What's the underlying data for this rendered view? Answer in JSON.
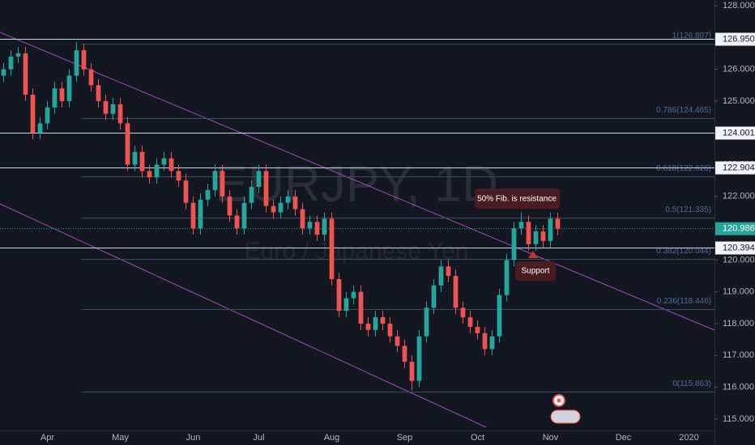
{
  "chart_data": {
    "type": "candlestick",
    "watermark": {
      "title": "EURJPY, 1D",
      "subtitle": "Euro / Japanese Yen"
    },
    "annotations": [
      "50% Fib. is resistance",
      "Support"
    ],
    "categories": [
      null,
      null,
      null,
      null,
      null,
      null,
      "Apr",
      null,
      null,
      null,
      null,
      null,
      null,
      null,
      null,
      null,
      "May",
      null,
      null,
      null,
      null,
      null,
      null,
      null,
      null,
      null,
      "Jun",
      null,
      null,
      null,
      null,
      null,
      null,
      null,
      null,
      "Jul",
      null,
      null,
      null,
      null,
      null,
      null,
      null,
      null,
      null,
      "Aug",
      null,
      null,
      null,
      null,
      null,
      null,
      null,
      null,
      null,
      "Sep",
      null,
      null,
      null,
      null,
      null,
      null,
      null,
      null,
      null,
      "Oct",
      null,
      null,
      null,
      null,
      null,
      null,
      null,
      null,
      null,
      "Nov",
      null,
      null,
      null,
      null,
      null,
      null,
      null,
      null,
      null,
      "Dec",
      null,
      null,
      null,
      null,
      null,
      null,
      null,
      null,
      "2020",
      null,
      null,
      null
    ],
    "open": [
      125.8,
      126.0,
      126.4,
      126.5,
      125.2,
      124.0,
      124.3,
      124.8,
      125.4,
      125.0,
      125.8,
      126.6,
      126.0,
      125.5,
      125.0,
      124.6,
      124.9,
      124.3,
      123.0,
      123.4,
      122.8,
      122.6,
      123.0,
      123.2,
      122.8,
      122.5,
      121.8,
      121.0,
      121.9,
      122.2,
      122.8,
      122.0,
      121.4,
      121.0,
      121.8,
      122.3,
      122.8,
      121.7,
      121.5,
      121.8,
      122.0,
      121.6,
      121.0,
      121.2,
      120.8,
      121.3,
      119.4,
      118.4,
      118.8,
      119.0,
      118.0,
      117.8,
      118.2,
      118.0,
      117.6,
      117.3,
      116.8,
      116.2,
      117.6,
      118.5,
      119.2,
      119.8,
      119.5,
      118.5,
      118.2,
      117.9,
      117.7,
      117.2,
      117.6,
      118.9,
      120.0,
      121.0,
      121.2,
      120.5,
      120.9,
      120.6,
      121.3,
      null,
      null,
      null,
      null,
      null,
      null,
      null,
      null,
      null,
      null,
      null,
      null,
      null,
      null,
      null,
      null,
      null,
      null,
      null,
      null,
      null
    ],
    "high": [
      126.2,
      126.6,
      126.7,
      126.7,
      125.4,
      124.5,
      125.0,
      125.6,
      125.6,
      126.0,
      126.85,
      126.8,
      126.2,
      125.7,
      125.2,
      125.1,
      125.1,
      124.5,
      123.6,
      123.6,
      123.0,
      123.2,
      123.4,
      123.4,
      123.0,
      122.7,
      122.0,
      122.1,
      122.4,
      123.0,
      123.0,
      122.2,
      121.6,
      122.0,
      122.5,
      123.0,
      123.0,
      121.9,
      122.0,
      122.2,
      122.2,
      121.8,
      121.4,
      121.4,
      121.5,
      121.5,
      119.6,
      119.0,
      119.2,
      119.2,
      118.2,
      118.4,
      118.4,
      118.2,
      117.8,
      117.5,
      117.0,
      117.8,
      118.7,
      119.4,
      120.0,
      120.0,
      119.7,
      118.7,
      118.4,
      118.1,
      117.9,
      117.8,
      119.1,
      120.2,
      121.2,
      121.5,
      121.4,
      121.1,
      121.1,
      121.5,
      121.5,
      null,
      null,
      null,
      null,
      null,
      null,
      null,
      null,
      null,
      null,
      null,
      null,
      null,
      null,
      null,
      null,
      null,
      null,
      null,
      null,
      null
    ],
    "low": [
      125.6,
      125.8,
      126.2,
      125.0,
      123.8,
      123.8,
      124.1,
      124.6,
      124.8,
      124.8,
      125.6,
      125.8,
      125.3,
      124.8,
      124.4,
      124.4,
      124.1,
      122.8,
      122.8,
      122.6,
      122.4,
      122.4,
      122.8,
      122.6,
      122.3,
      121.6,
      120.8,
      120.8,
      121.7,
      122.0,
      121.8,
      121.2,
      120.8,
      120.8,
      121.6,
      122.1,
      121.5,
      121.3,
      121.3,
      121.6,
      121.4,
      120.8,
      120.8,
      120.6,
      120.6,
      119.2,
      118.2,
      118.2,
      118.6,
      117.8,
      117.6,
      117.6,
      117.8,
      117.4,
      117.1,
      116.6,
      115.9,
      116.0,
      117.4,
      118.3,
      119.0,
      119.3,
      118.3,
      118.0,
      117.7,
      117.5,
      117.0,
      117.0,
      117.4,
      118.7,
      119.8,
      120.8,
      120.3,
      120.3,
      120.4,
      120.4,
      120.78,
      null,
      null,
      null,
      null,
      null,
      null,
      null,
      null,
      null,
      null,
      null,
      null,
      null,
      null,
      null,
      null,
      null,
      null,
      null,
      null,
      null
    ],
    "close": [
      126.0,
      126.4,
      126.5,
      125.2,
      124.0,
      124.3,
      124.8,
      125.4,
      125.0,
      125.8,
      126.6,
      126.0,
      125.5,
      125.0,
      124.6,
      124.9,
      124.3,
      123.0,
      123.4,
      122.8,
      122.6,
      123.0,
      123.2,
      122.8,
      122.5,
      121.8,
      121.0,
      121.9,
      122.2,
      122.8,
      122.0,
      121.4,
      121.0,
      121.8,
      122.3,
      122.8,
      121.7,
      121.5,
      121.8,
      122.0,
      121.6,
      121.0,
      121.2,
      120.8,
      121.3,
      119.4,
      118.4,
      118.8,
      119.0,
      118.0,
      117.8,
      118.2,
      118.0,
      117.6,
      117.3,
      116.8,
      116.2,
      117.6,
      118.5,
      119.2,
      119.8,
      119.5,
      118.5,
      118.2,
      117.9,
      117.7,
      117.2,
      117.6,
      118.9,
      120.0,
      121.0,
      121.2,
      120.5,
      120.9,
      120.6,
      121.3,
      120.986,
      null,
      null,
      null,
      null,
      null,
      null,
      null,
      null,
      null,
      null,
      null,
      null,
      null,
      null,
      null,
      null,
      null,
      null,
      null,
      null,
      null
    ],
    "up_color": "#26a69a",
    "down_color": "#ef5350",
    "ylim": [
      114.64,
      128.18
    ],
    "yticks": [
      {
        "value": 115,
        "label": "115.000"
      },
      {
        "value": 116,
        "label": "116.000"
      },
      {
        "value": 117,
        "label": "117.000"
      },
      {
        "value": 118,
        "label": "118.000"
      },
      {
        "value": 119,
        "label": "119.000"
      },
      {
        "value": 120,
        "label": "120.000"
      },
      {
        "value": 121,
        "label": "121.000"
      },
      {
        "value": 122,
        "label": "122.000"
      },
      {
        "value": 123,
        "label": "123.000"
      },
      {
        "value": 124,
        "label": "124.000"
      },
      {
        "value": 125,
        "label": "125.000"
      },
      {
        "value": 126,
        "label": "126.000"
      },
      {
        "value": 127,
        "label": "127.000"
      },
      {
        "value": 128,
        "label": "128.000"
      }
    ],
    "levels": [
      {
        "value": 126.95,
        "label": "126.950"
      },
      {
        "value": 124.001,
        "label": "124.001"
      },
      {
        "value": 122.904,
        "label": "122.904"
      },
      {
        "value": 120.394,
        "label": "120.394"
      }
    ],
    "current_price": 120.986,
    "fib_levels": [
      {
        "value": 126.807,
        "label": "1(126.807)"
      },
      {
        "value": 124.465,
        "label": "0.786(124.465)"
      },
      {
        "value": 122.626,
        "label": "0.618(122.626)"
      },
      {
        "value": 121.335,
        "label": "0.5(121.335)"
      },
      {
        "value": 120.044,
        "label": "0.382(120.044)"
      },
      {
        "value": 118.446,
        "label": "0.236(118.446)"
      },
      {
        "value": 115.863,
        "label": "0(115.863)"
      }
    ]
  }
}
